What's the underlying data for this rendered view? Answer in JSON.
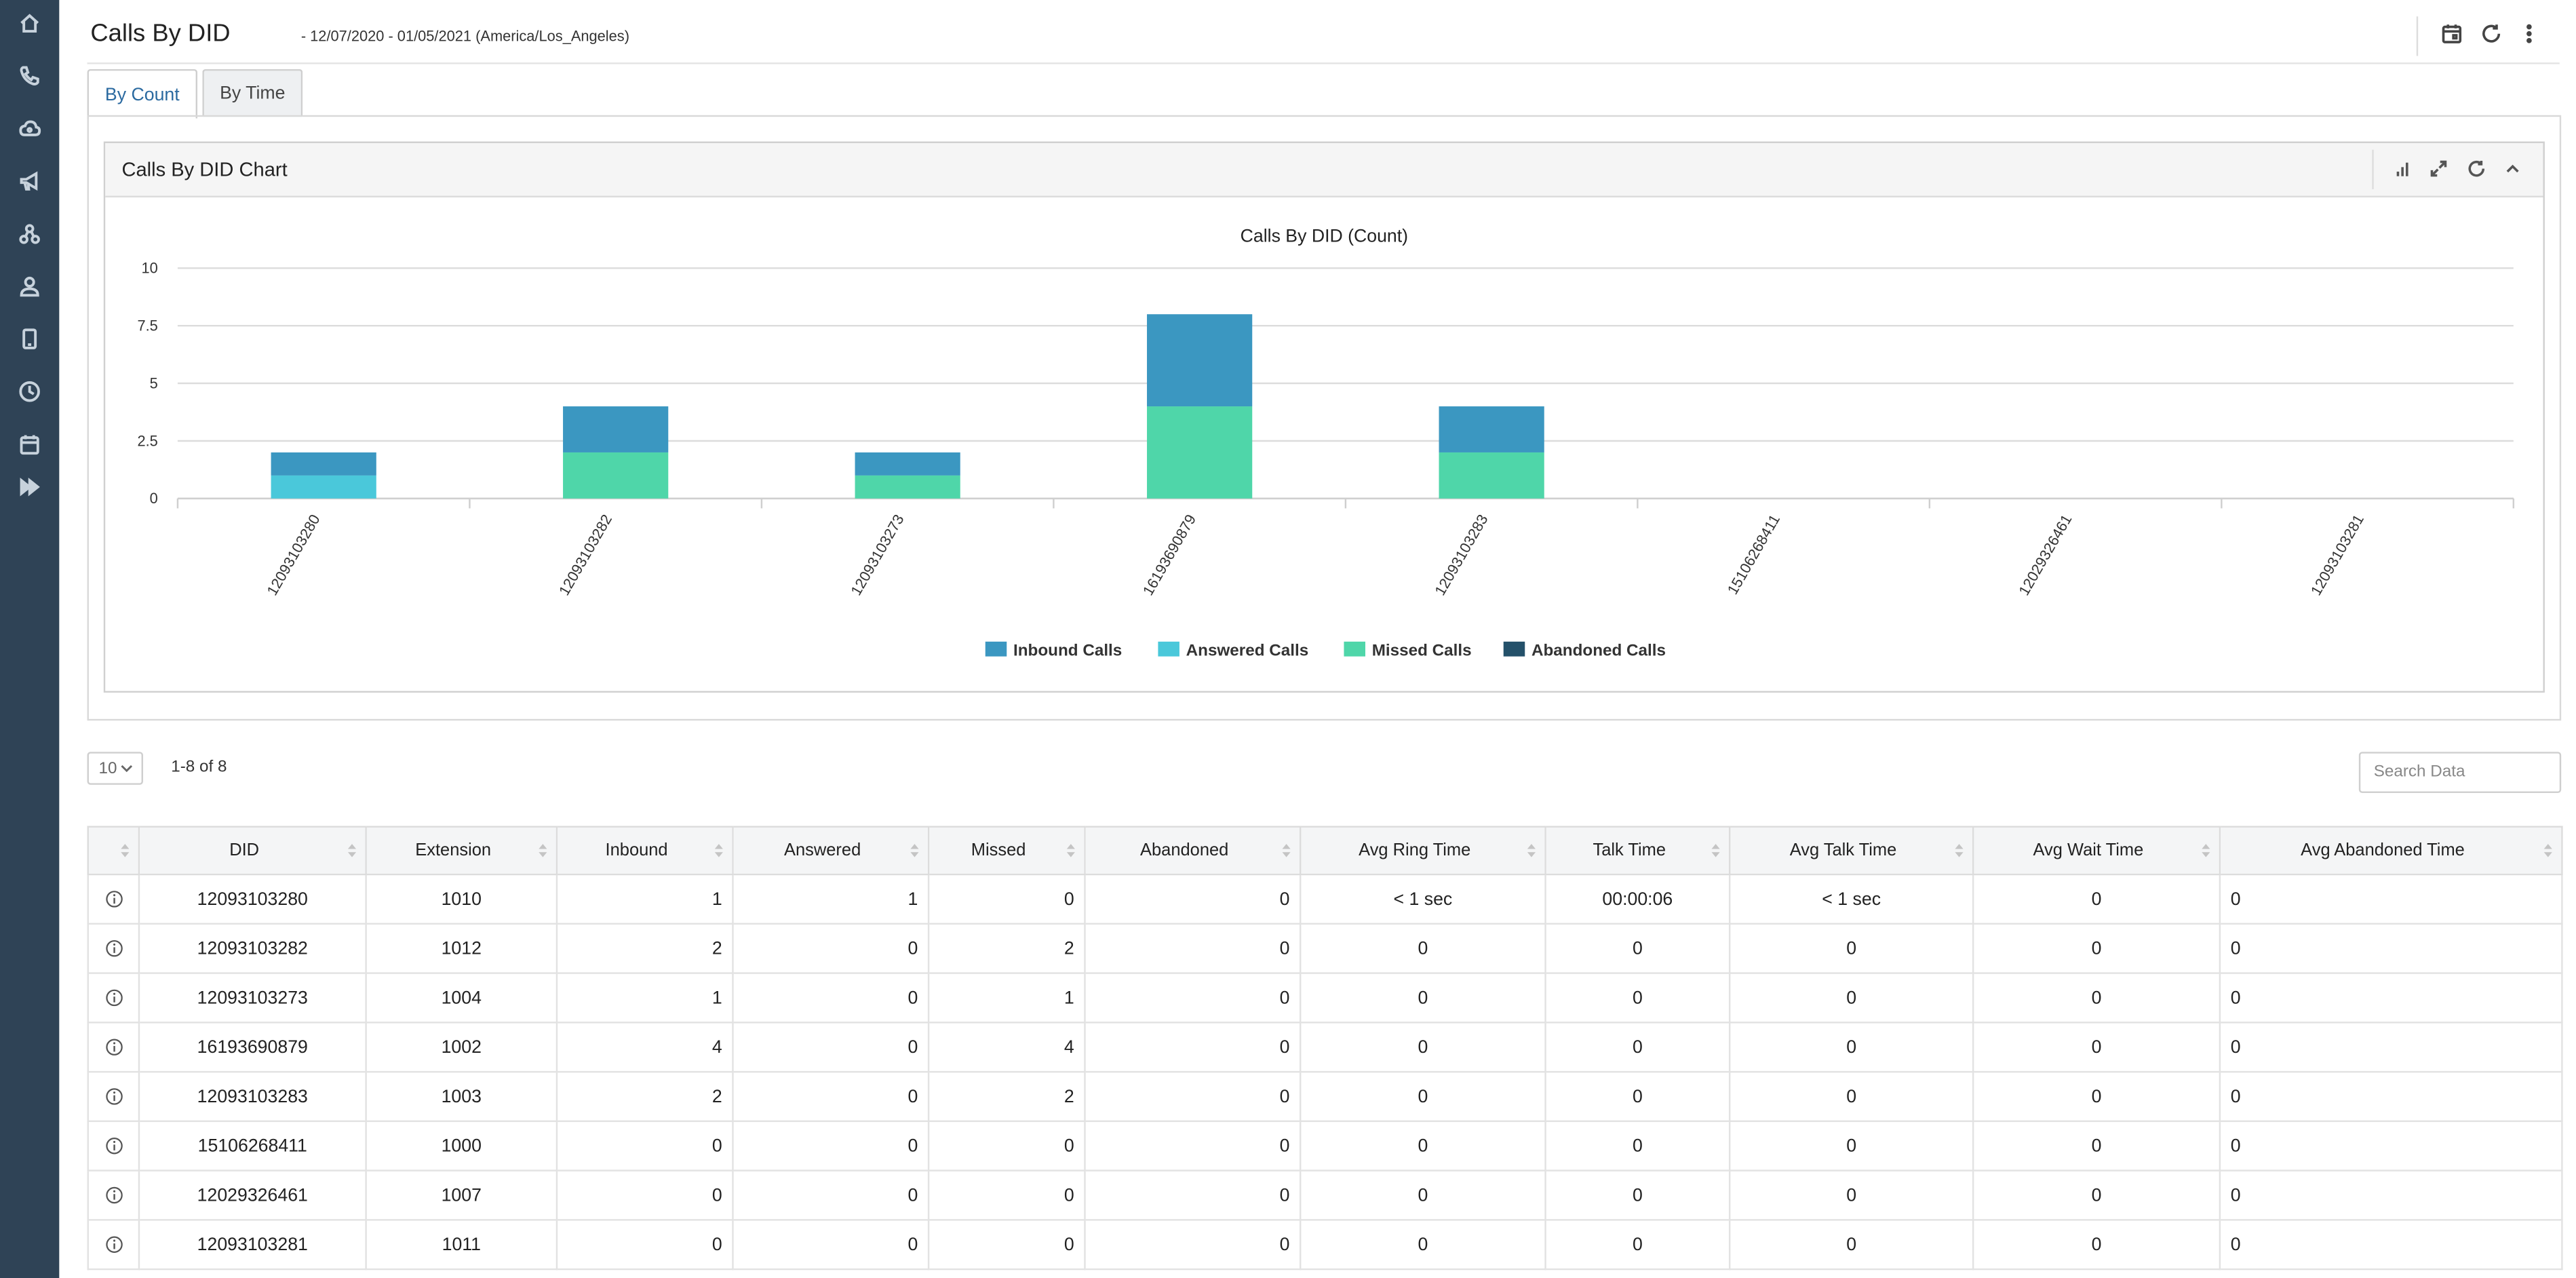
{
  "header": {
    "title": "Calls By DID",
    "subtitle": "- 12/07/2020 - 01/05/2021  (America/Los_Angeles)"
  },
  "tabs": [
    {
      "label": "By Count",
      "active": true
    },
    {
      "label": "By Time",
      "active": false
    }
  ],
  "panel": {
    "title": "Calls By DID Chart"
  },
  "chart_data": {
    "type": "bar",
    "stacked": true,
    "title": "Calls By DID (Count)",
    "categories": [
      "12093103280",
      "12093103282",
      "12093103273",
      "16193690879",
      "12093103283",
      "15106268411",
      "12029326461",
      "12093103281"
    ],
    "series": [
      {
        "name": "Inbound Calls",
        "color": "#3b97c1",
        "values": [
          1,
          2,
          1,
          4,
          2,
          0,
          0,
          0
        ]
      },
      {
        "name": "Answered Calls",
        "color": "#4ac8da",
        "values": [
          1,
          0,
          0,
          0,
          0,
          0,
          0,
          0
        ]
      },
      {
        "name": "Missed Calls",
        "color": "#4fd6a9",
        "values": [
          0,
          2,
          1,
          4,
          2,
          0,
          0,
          0
        ]
      },
      {
        "name": "Abandoned Calls",
        "color": "#24516a",
        "values": [
          0,
          0,
          0,
          0,
          0,
          0,
          0,
          0
        ]
      }
    ],
    "yticks": [
      0,
      2.5,
      5,
      7.5,
      10
    ],
    "ytick_labels": [
      "0",
      "2.5",
      "5",
      "7.5",
      "10"
    ],
    "ylim": [
      0,
      10
    ],
    "xlabel": "",
    "ylabel": "",
    "legend": "bottom-center",
    "grid": true
  },
  "table_controls": {
    "page_size": "10",
    "page_info": "1-8 of 8",
    "search_placeholder": "Search Data"
  },
  "table": {
    "columns": [
      "DID",
      "Extension",
      "Inbound",
      "Answered",
      "Missed",
      "Abandoned",
      "Avg Ring Time",
      "Talk Time",
      "Avg Talk Time",
      "Avg Wait Time",
      "Avg Abandoned Time"
    ],
    "rows": [
      [
        "12093103280",
        "1010",
        "1",
        "1",
        "0",
        "0",
        "< 1 sec",
        "00:00:06",
        "< 1 sec",
        "0",
        "0"
      ],
      [
        "12093103282",
        "1012",
        "2",
        "0",
        "2",
        "0",
        "0",
        "0",
        "0",
        "0",
        "0"
      ],
      [
        "12093103273",
        "1004",
        "1",
        "0",
        "1",
        "0",
        "0",
        "0",
        "0",
        "0",
        "0"
      ],
      [
        "16193690879",
        "1002",
        "4",
        "0",
        "4",
        "0",
        "0",
        "0",
        "0",
        "0",
        "0"
      ],
      [
        "12093103283",
        "1003",
        "2",
        "0",
        "2",
        "0",
        "0",
        "0",
        "0",
        "0",
        "0"
      ],
      [
        "15106268411",
        "1000",
        "0",
        "0",
        "0",
        "0",
        "0",
        "0",
        "0",
        "0",
        "0"
      ],
      [
        "12029326461",
        "1007",
        "0",
        "0",
        "0",
        "0",
        "0",
        "0",
        "0",
        "0",
        "0"
      ],
      [
        "12093103281",
        "1011",
        "0",
        "0",
        "0",
        "0",
        "0",
        "0",
        "0",
        "0",
        "0"
      ]
    ]
  },
  "icons": {
    "sidebar": [
      "home-icon",
      "phone-icon",
      "cloud-icon",
      "megaphone-icon",
      "network-icon",
      "user-icon",
      "mobile-icon",
      "clock-icon",
      "calendar-icon",
      "fast-forward-icon"
    ],
    "header": [
      "calendar-icon",
      "refresh-icon",
      "more-vertical-icon"
    ],
    "panel": [
      "bar-chart-icon",
      "expand-icon",
      "refresh-icon",
      "chevron-up-icon"
    ]
  },
  "colors": {
    "sidebar": "#2f4356",
    "accent": "#2b6aa0"
  }
}
